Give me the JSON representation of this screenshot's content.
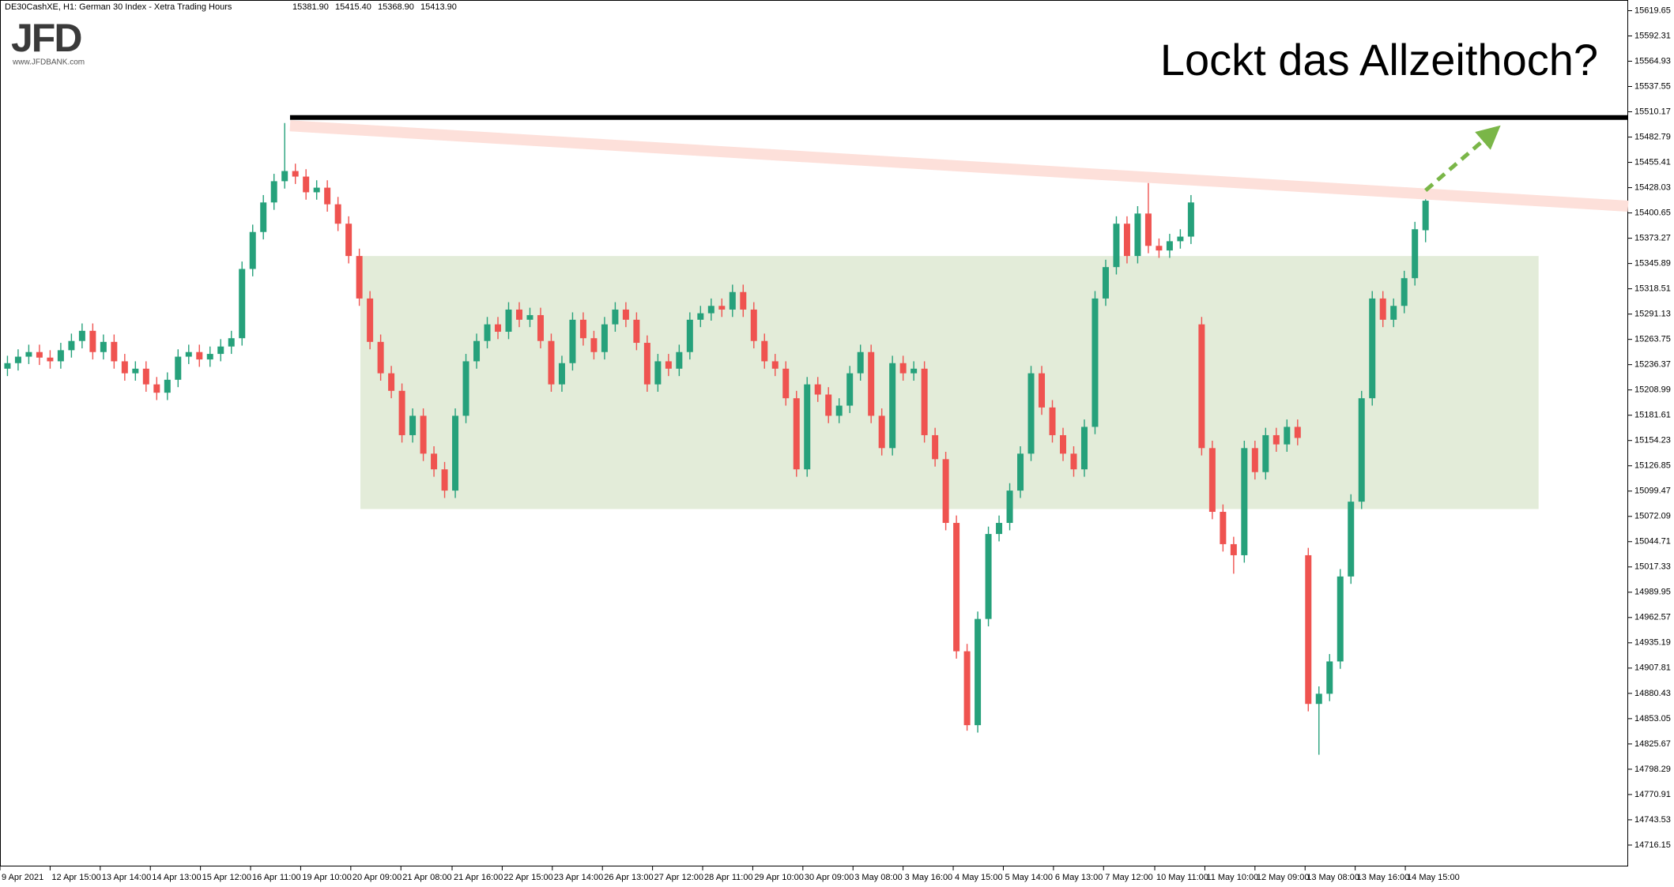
{
  "header": {
    "symbol": "DE30CashXE, H1:  German 30 Index  - Xetra Trading Hours",
    "ohlc": [
      "15381.90",
      "15415.40",
      "15368.90",
      "15413.90"
    ]
  },
  "logo": {
    "brand": "JFD",
    "url": "www.JFDBANK.com"
  },
  "chart_data": {
    "type": "candlestick",
    "title": "Lockt das Allzeithoch?",
    "up_color": "#26a17b",
    "down_color": "#ef5350",
    "open": [
      15232,
      15238,
      15245,
      15250,
      15244,
      15240,
      15252,
      15262,
      15273,
      15250,
      15261,
      15240,
      15227,
      15232,
      15215,
      15206,
      15220,
      15245,
      15250,
      15242,
      15248,
      15256,
      15265,
      15340,
      15380,
      15412,
      15435,
      15446,
      15440,
      15423,
      15428,
      15410,
      15389,
      15354,
      15308,
      15261,
      15227,
      15208,
      15160,
      15181,
      15140,
      15123,
      15100,
      15181,
      15240,
      15262,
      15280,
      15272,
      15296,
      15285,
      15290,
      15262,
      15215,
      15238,
      15285,
      15265,
      15250,
      15280,
      15296,
      15285,
      15260,
      15215,
      15240,
      15232,
      15250,
      15285,
      15292,
      15300,
      15296,
      15315,
      15296,
      15262,
      15240,
      15232,
      15200,
      15123,
      15215,
      15204,
      15181,
      15192,
      15227,
      15250,
      15181,
      15146,
      15238,
      15227,
      15232,
      15160,
      15134,
      15065,
      14926,
      14846,
      14961,
      15053,
      15065,
      15100,
      15140,
      15227,
      15190,
      15160,
      15140,
      15123,
      15169,
      15308,
      15342,
      15389,
      15354,
      15400,
      15365,
      15360,
      15370,
      15375,
      15280,
      15146,
      15077,
      15042,
      15030,
      15146,
      15120,
      15160,
      15150,
      15169,
      15030,
      14869,
      14880,
      14915,
      15007,
      15088,
      15200,
      15308,
      15285,
      15300,
      15330,
      15381.9
    ],
    "high": [
      15246,
      15253,
      15258,
      15258,
      15252,
      15260,
      15270,
      15281,
      15281,
      15269,
      15269,
      15248,
      15240,
      15240,
      15223,
      15228,
      15253,
      15258,
      15258,
      15256,
      15264,
      15273,
      15348,
      15388,
      15420,
      15443,
      15498,
      15454,
      15448,
      15436,
      15436,
      15418,
      15397,
      15362,
      15316,
      15269,
      15235,
      15216,
      15189,
      15189,
      15148,
      15131,
      15189,
      15248,
      15270,
      15288,
      15288,
      15304,
      15304,
      15298,
      15298,
      15270,
      15246,
      15293,
      15293,
      15273,
      15288,
      15304,
      15304,
      15293,
      15268,
      15248,
      15248,
      15258,
      15293,
      15300,
      15308,
      15308,
      15323,
      15323,
      15304,
      15270,
      15248,
      15240,
      15208,
      15223,
      15223,
      15212,
      15200,
      15235,
      15258,
      15258,
      15189,
      15246,
      15246,
      15240,
      15240,
      15168,
      15142,
      15073,
      14934,
      14969,
      15061,
      15073,
      15108,
      15148,
      15235,
      15235,
      15198,
      15168,
      15148,
      15177,
      15316,
      15350,
      15397,
      15397,
      15408,
      15433,
      15373,
      15378,
      15383,
      15420,
      15288,
      15154,
      15085,
      15050,
      15154,
      15154,
      15168,
      15168,
      15177,
      15177,
      15038,
      14888,
      14923,
      15015,
      15096,
      15208,
      15316,
      15316,
      15308,
      15338,
      15391,
      15415.4
    ],
    "low": [
      15224,
      15230,
      15237,
      15236,
      15232,
      15232,
      15244,
      15254,
      15242,
      15242,
      15232,
      15219,
      15219,
      15207,
      15198,
      15198,
      15212,
      15237,
      15234,
      15234,
      15240,
      15248,
      15257,
      15332,
      15372,
      15404,
      15427,
      15432,
      15415,
      15415,
      15402,
      15381,
      15346,
      15300,
      15253,
      15219,
      15200,
      15152,
      15152,
      15132,
      15115,
      15092,
      15092,
      15173,
      15232,
      15254,
      15264,
      15264,
      15277,
      15277,
      15254,
      15207,
      15207,
      15230,
      15257,
      15242,
      15242,
      15272,
      15277,
      15252,
      15207,
      15207,
      15224,
      15224,
      15242,
      15277,
      15284,
      15288,
      15288,
      15288,
      15254,
      15232,
      15224,
      15192,
      15115,
      15115,
      15196,
      15173,
      15173,
      15184,
      15219,
      15173,
      15138,
      15138,
      15219,
      15219,
      15152,
      15126,
      15057,
      14918,
      14840,
      14838,
      14953,
      15045,
      15057,
      15092,
      15132,
      15182,
      15152,
      15132,
      15115,
      15115,
      15161,
      15300,
      15334,
      15346,
      15346,
      15357,
      15352,
      15352,
      15362,
      15367,
      15138,
      15069,
      15034,
      15010,
      15022,
      15112,
      15112,
      15142,
      15142,
      15149,
      14861,
      14814,
      14872,
      14907,
      14999,
      15080,
      15192,
      15277,
      15277,
      15292,
      15322,
      15368.9
    ],
    "close": [
      15238,
      15245,
      15250,
      15244,
      15240,
      15252,
      15262,
      15273,
      15250,
      15261,
      15240,
      15227,
      15232,
      15215,
      15206,
      15220,
      15245,
      15250,
      15242,
      15248,
      15256,
      15265,
      15340,
      15380,
      15412,
      15435,
      15446,
      15440,
      15423,
      15428,
      15410,
      15389,
      15354,
      15308,
      15261,
      15227,
      15208,
      15160,
      15181,
      15140,
      15123,
      15100,
      15181,
      15240,
      15262,
      15280,
      15272,
      15296,
      15285,
      15290,
      15262,
      15215,
      15238,
      15285,
      15265,
      15250,
      15280,
      15296,
      15285,
      15260,
      15215,
      15240,
      15232,
      15250,
      15285,
      15292,
      15300,
      15296,
      15315,
      15296,
      15262,
      15240,
      15232,
      15200,
      15123,
      15215,
      15204,
      15181,
      15192,
      15227,
      15250,
      15181,
      15146,
      15238,
      15227,
      15232,
      15160,
      15134,
      15065,
      14926,
      14846,
      14961,
      15053,
      15065,
      15100,
      15140,
      15227,
      15190,
      15160,
      15140,
      15123,
      15169,
      15308,
      15342,
      15389,
      15354,
      15400,
      15365,
      15360,
      15370,
      15375,
      15412,
      15146,
      15077,
      15042,
      15030,
      15146,
      15120,
      15160,
      15150,
      15169,
      15157,
      14869,
      14880,
      14915,
      15007,
      15088,
      15200,
      15308,
      15285,
      15300,
      15330,
      15383,
      15413.9
    ],
    "xlim": [
      -0.7,
      152
    ],
    "xticks": [
      {
        "value": -0.7,
        "label": "9 Apr 2021"
      },
      {
        "value": 4.0,
        "label": "12 Apr 15:00"
      },
      {
        "value": 8.7,
        "label": "13 Apr 14:00"
      },
      {
        "value": 13.4,
        "label": "14 Apr 13:00"
      },
      {
        "value": 18.1,
        "label": "15 Apr 12:00"
      },
      {
        "value": 22.8,
        "label": "16 Apr 11:00"
      },
      {
        "value": 27.5,
        "label": "19 Apr 10:00"
      },
      {
        "value": 32.2,
        "label": "20 Apr 09:00"
      },
      {
        "value": 36.9,
        "label": "21 Apr 08:00"
      },
      {
        "value": 41.7,
        "label": "21 Apr 16:00"
      },
      {
        "value": 46.4,
        "label": "22 Apr 15:00"
      },
      {
        "value": 51.1,
        "label": "23 Apr 14:00"
      },
      {
        "value": 55.8,
        "label": "26 Apr 13:00"
      },
      {
        "value": 60.5,
        "label": "27 Apr 12:00"
      },
      {
        "value": 65.2,
        "label": "28 Apr 11:00"
      },
      {
        "value": 69.9,
        "label": "29 Apr 10:00"
      },
      {
        "value": 74.6,
        "label": "30 Apr 09:00"
      },
      {
        "value": 79.3,
        "label": "3 May 08:00"
      },
      {
        "value": 84.0,
        "label": "3 May 16:00"
      },
      {
        "value": 88.7,
        "label": "4 May 15:00"
      },
      {
        "value": 93.4,
        "label": "5 May 14:00"
      },
      {
        "value": 98.1,
        "label": "6 May 13:00"
      },
      {
        "value": 102.8,
        "label": "7 May 12:00"
      },
      {
        "value": 107.6,
        "label": "10 May 11:00"
      },
      {
        "value": 112.3,
        "label": "11 May 10:00"
      },
      {
        "value": 117.0,
        "label": "12 May 09:00"
      },
      {
        "value": 121.7,
        "label": "13 May 08:00"
      },
      {
        "value": 126.4,
        "label": "13 May 16:00"
      },
      {
        "value": 131.1,
        "label": "14 May 15:00"
      }
    ],
    "ylim": [
      14693,
      15629.5
    ],
    "yticks": [
      15619.65,
      15592.31,
      15564.93,
      15537.55,
      15510.17,
      15482.79,
      15455.41,
      15428.03,
      15400.65,
      15373.27,
      15345.89,
      15318.51,
      15291.13,
      15263.75,
      15236.37,
      15208.99,
      15181.61,
      15154.23,
      15126.85,
      15099.47,
      15072.09,
      15044.71,
      15017.33,
      14989.95,
      14962.57,
      14935.19,
      14907.81,
      14880.43,
      14853.05,
      14825.67,
      14798.29,
      14770.91,
      14743.53,
      14716.15
    ],
    "annotations": {
      "resistance_line": {
        "x0": 26.5,
        "y": 15504,
        "color": "#000000"
      },
      "trend_line": {
        "x": [
          26.5,
          152
        ],
        "y": [
          15495,
          15408
        ],
        "color": "#fde0da"
      },
      "range_box": {
        "x": [
          33.1,
          143.6
        ],
        "y": [
          15080,
          15354
        ],
        "color": "#e3ecd9"
      },
      "arrow": {
        "x": [
          133,
          139.2
        ],
        "y": [
          15425,
          15487
        ],
        "color": "#7ab648"
      }
    }
  }
}
